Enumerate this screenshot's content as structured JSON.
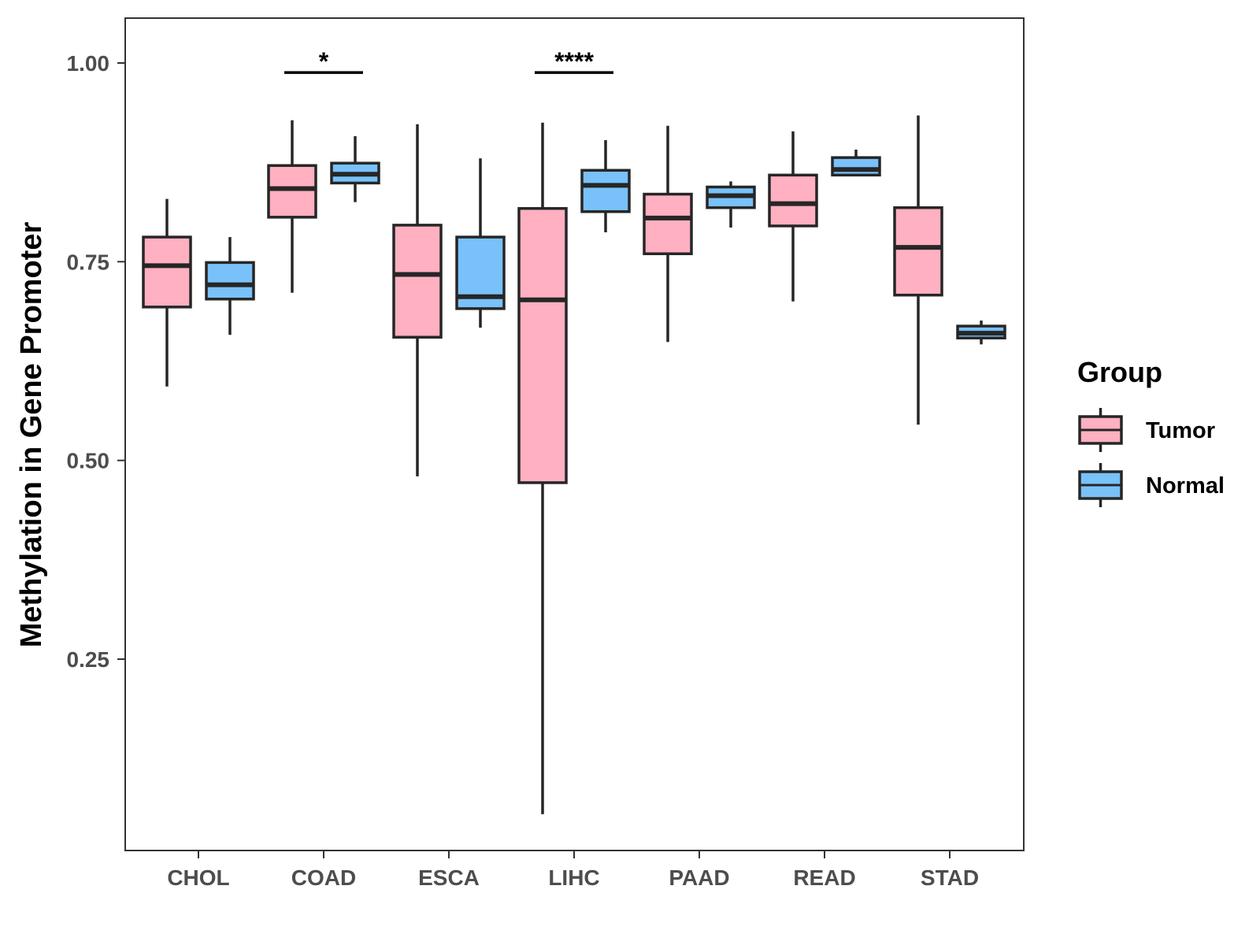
{
  "chart_data": {
    "type": "boxplot",
    "title": "",
    "xlabel": "",
    "ylabel": "Methylation in Gene Promoter",
    "ylim": [
      0.0,
      1.06
    ],
    "yticks": [
      0.25,
      0.5,
      0.75,
      1.0
    ],
    "ytick_labels": [
      "0.25",
      "0.50",
      "0.75",
      "1.00"
    ],
    "grid": false,
    "categories": [
      "CHOL",
      "COAD",
      "ESCA",
      "LIHC",
      "PAAD",
      "READ",
      "STAD"
    ],
    "legend": {
      "title": "Group",
      "position": "right",
      "entries": [
        {
          "name": "Tumor",
          "color": "#ffb0c1"
        },
        {
          "name": "Normal",
          "color": "#79c1f9"
        }
      ]
    },
    "series": [
      {
        "name": "Tumor",
        "color": "#ffb0c1",
        "boxes": [
          {
            "category": "CHOL",
            "min": 0.593,
            "q1": 0.693,
            "median": 0.745,
            "q3": 0.781,
            "max": 0.829
          },
          {
            "category": "COAD",
            "min": 0.711,
            "q1": 0.806,
            "median": 0.842,
            "q3": 0.871,
            "max": 0.928
          },
          {
            "category": "ESCA",
            "min": 0.48,
            "q1": 0.655,
            "median": 0.734,
            "q3": 0.796,
            "max": 0.923
          },
          {
            "category": "LIHC",
            "min": 0.055,
            "q1": 0.472,
            "median": 0.702,
            "q3": 0.817,
            "max": 0.925
          },
          {
            "category": "PAAD",
            "min": 0.649,
            "q1": 0.76,
            "median": 0.805,
            "q3": 0.835,
            "max": 0.921
          },
          {
            "category": "READ",
            "min": 0.7,
            "q1": 0.795,
            "median": 0.823,
            "q3": 0.859,
            "max": 0.914
          },
          {
            "category": "STAD",
            "min": 0.545,
            "q1": 0.708,
            "median": 0.768,
            "q3": 0.818,
            "max": 0.934
          }
        ]
      },
      {
        "name": "Normal",
        "color": "#79c1f9",
        "boxes": [
          {
            "category": "CHOL",
            "min": 0.658,
            "q1": 0.703,
            "median": 0.721,
            "q3": 0.749,
            "max": 0.781
          },
          {
            "category": "COAD",
            "min": 0.825,
            "q1": 0.849,
            "median": 0.86,
            "q3": 0.874,
            "max": 0.908
          },
          {
            "category": "ESCA",
            "min": 0.667,
            "q1": 0.691,
            "median": 0.706,
            "q3": 0.781,
            "max": 0.88
          },
          {
            "category": "LIHC",
            "min": 0.787,
            "q1": 0.813,
            "median": 0.846,
            "q3": 0.865,
            "max": 0.903
          },
          {
            "category": "PAAD",
            "min": 0.793,
            "q1": 0.818,
            "median": 0.833,
            "q3": 0.844,
            "max": 0.851
          },
          {
            "category": "READ",
            "min": 0.858,
            "q1": 0.859,
            "median": 0.866,
            "q3": 0.881,
            "max": 0.891
          },
          {
            "category": "STAD",
            "min": 0.646,
            "q1": 0.654,
            "median": 0.66,
            "q3": 0.669,
            "max": 0.676
          }
        ]
      }
    ],
    "annotations": [
      {
        "category": "COAD",
        "label": "*",
        "y": 0.988
      },
      {
        "category": "LIHC",
        "label": "****",
        "y": 0.988
      }
    ]
  }
}
